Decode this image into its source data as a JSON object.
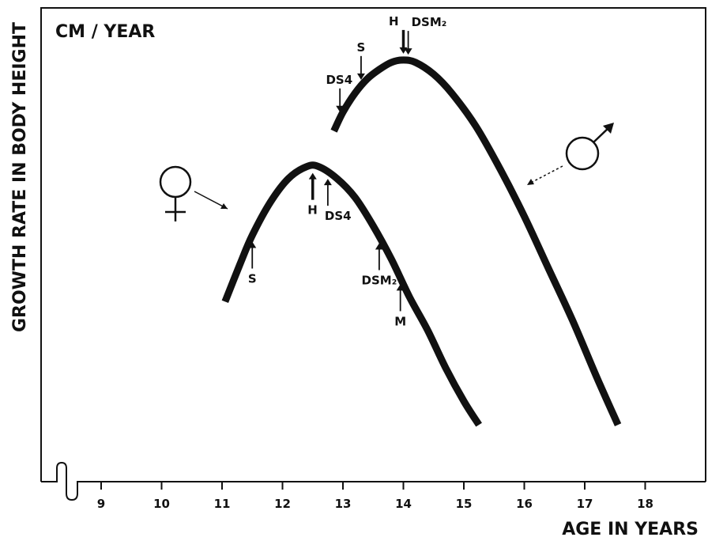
{
  "chart_data": {
    "type": "line",
    "unit_label": "CM / YEAR",
    "xlabel": "AGE IN YEARS",
    "ylabel": "GROWTH RATE IN BODY HEIGHT",
    "xlim": [
      8.5,
      18.8
    ],
    "x_ticks": [
      "9",
      "10",
      "11",
      "12",
      "13",
      "14",
      "15",
      "16",
      "17",
      "18"
    ],
    "y_tick_labels": "none",
    "series": [
      {
        "symbol": "♀",
        "x": [
          11.05,
          11.3,
          11.5,
          11.8,
          12.1,
          12.4,
          12.6,
          12.9,
          13.2,
          13.5,
          13.8,
          14.1,
          14.4,
          14.7,
          15.0,
          15.25
        ],
        "y_rel": [
          0.38,
          0.46,
          0.52,
          0.59,
          0.64,
          0.665,
          0.665,
          0.64,
          0.6,
          0.54,
          0.47,
          0.39,
          0.32,
          0.24,
          0.17,
          0.12
        ],
        "markers": [
          {
            "label": "S",
            "x": 11.5,
            "side": "below"
          },
          {
            "label": "H",
            "x": 12.5,
            "side": "below",
            "bold": true
          },
          {
            "label": "DS4",
            "x": 12.75,
            "side": "below"
          },
          {
            "label": "DSM₂",
            "x": 13.6,
            "side": "below"
          },
          {
            "label": "M",
            "x": 13.95,
            "side": "below"
          }
        ]
      },
      {
        "symbol": "♂",
        "x": [
          12.85,
          13.0,
          13.2,
          13.4,
          13.6,
          13.8,
          14.0,
          14.2,
          14.5,
          14.8,
          15.2,
          15.6,
          16.0,
          16.4,
          16.8,
          17.2,
          17.55
        ],
        "y_rel": [
          0.74,
          0.78,
          0.82,
          0.85,
          0.87,
          0.885,
          0.89,
          0.885,
          0.86,
          0.82,
          0.75,
          0.66,
          0.56,
          0.45,
          0.34,
          0.22,
          0.12
        ],
        "markers": [
          {
            "label": "DS4",
            "x": 12.95,
            "side": "above"
          },
          {
            "label": "S",
            "x": 13.3,
            "side": "above"
          },
          {
            "label": "H",
            "x": 14.0,
            "side": "above",
            "bold": true
          },
          {
            "label": "DSM₂",
            "x": 14.08,
            "side": "above"
          }
        ]
      }
    ]
  }
}
